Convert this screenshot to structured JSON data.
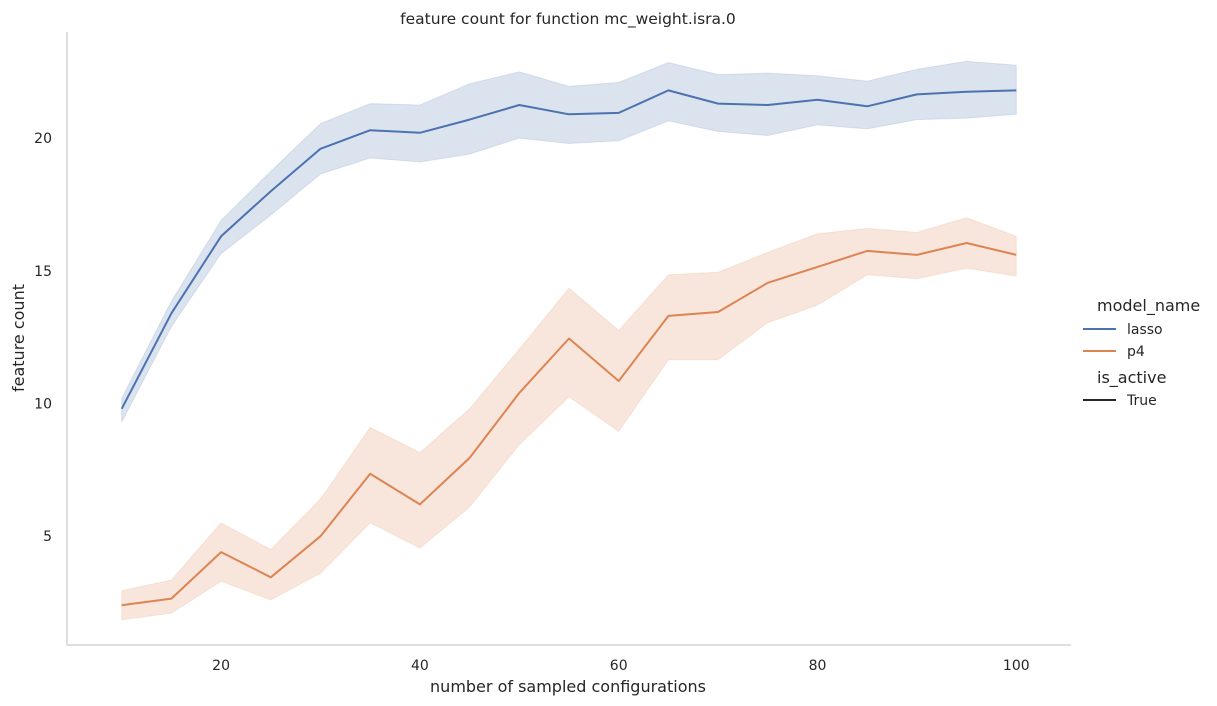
{
  "chart_data": {
    "type": "line",
    "title": "feature count for function mc_weight.isra.0",
    "xlabel": "number of sampled configurations",
    "ylabel": "feature count",
    "xlim": [
      4.5,
      105.5
    ],
    "ylim": [
      0.9,
      24.0
    ],
    "xticks": [
      20,
      40,
      60,
      80,
      100
    ],
    "yticks": [
      5,
      10,
      15,
      20
    ],
    "grid": false,
    "legend_position": "right",
    "x": [
      10,
      15,
      20,
      25,
      30,
      35,
      40,
      45,
      50,
      55,
      60,
      65,
      70,
      75,
      80,
      85,
      90,
      95,
      100
    ],
    "series": [
      {
        "name": "lasso",
        "color": "#4c72b0",
        "values": [
          9.8,
          13.4,
          16.3,
          18.0,
          19.6,
          20.3,
          20.2,
          20.7,
          21.25,
          20.9,
          20.95,
          21.8,
          21.3,
          21.25,
          21.45,
          21.2,
          21.65,
          21.75,
          21.8
        ],
        "lower": [
          9.3,
          12.9,
          15.65,
          17.1,
          18.65,
          19.25,
          19.1,
          19.4,
          20.0,
          19.8,
          19.9,
          20.65,
          20.25,
          20.1,
          20.5,
          20.35,
          20.7,
          20.75,
          20.9
        ],
        "upper": [
          10.2,
          13.85,
          16.9,
          18.75,
          20.55,
          21.3,
          21.25,
          22.05,
          22.5,
          21.95,
          22.1,
          22.85,
          22.4,
          22.45,
          22.35,
          22.15,
          22.6,
          22.9,
          22.75
        ]
      },
      {
        "name": "p4",
        "color": "#dd8452",
        "values": [
          2.4,
          2.65,
          4.4,
          3.45,
          5.0,
          7.35,
          6.2,
          7.95,
          10.4,
          12.45,
          10.85,
          13.3,
          13.45,
          14.55,
          15.15,
          15.75,
          15.6,
          16.05,
          15.6
        ],
        "lower": [
          1.85,
          2.1,
          3.3,
          2.6,
          3.6,
          5.5,
          4.55,
          6.1,
          8.45,
          10.25,
          8.95,
          11.65,
          11.65,
          13.05,
          13.7,
          14.85,
          14.7,
          15.1,
          14.8
        ],
        "upper": [
          2.95,
          3.35,
          5.5,
          4.5,
          6.4,
          9.1,
          8.15,
          9.8,
          12.05,
          14.35,
          12.75,
          14.85,
          14.95,
          15.7,
          16.4,
          16.6,
          16.45,
          17.0,
          16.3
        ]
      }
    ],
    "legend": {
      "hue_title": "model_name",
      "style_title": "is_active",
      "style_entries": [
        {
          "label": "True",
          "color": "#262626"
        }
      ]
    }
  }
}
